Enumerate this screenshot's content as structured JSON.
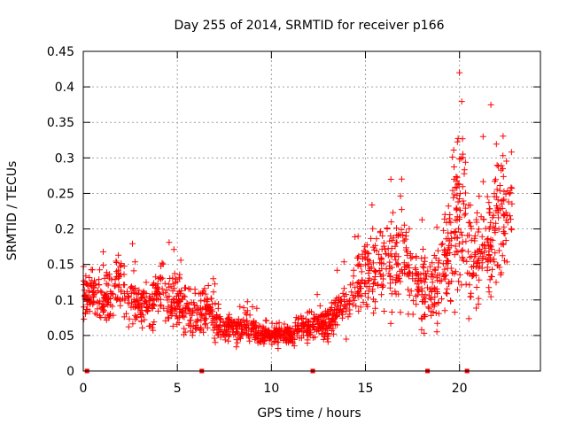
{
  "chart_data": {
    "type": "scatter",
    "title": "Day 255 of 2014, SRMTID for receiver p166",
    "xlabel": "GPS time / hours",
    "ylabel": "SRMTID / TECUs",
    "xlim": [
      0,
      24.3
    ],
    "ylim": [
      0,
      0.45
    ],
    "x_ticks": [
      0,
      5,
      10,
      15,
      20
    ],
    "x_tick_labels": [
      "0",
      "5",
      "10",
      "15",
      "20"
    ],
    "y_ticks": [
      0,
      0.05,
      0.1,
      0.15,
      0.2,
      0.25,
      0.3,
      0.35,
      0.4,
      0.45
    ],
    "y_tick_labels": [
      "0",
      "0.05",
      "0.1",
      "0.15",
      "0.2",
      "0.25",
      "0.3",
      "0.35",
      "0.4",
      "0.45"
    ],
    "grid": true,
    "marker": "+",
    "series_color": "#ff0000",
    "profile": {
      "x": [
        0.0,
        0.5,
        1.0,
        1.5,
        2.0,
        2.5,
        3.0,
        3.5,
        4.0,
        4.3,
        4.6,
        5.0,
        5.5,
        6.0,
        6.5,
        7.0,
        7.5,
        8.0,
        8.5,
        9.0,
        9.5,
        10.0,
        10.5,
        11.0,
        11.5,
        12.0,
        12.5,
        13.0,
        13.5,
        14.0,
        14.5,
        15.0,
        15.5,
        16.0,
        16.5,
        17.0,
        17.5,
        18.0,
        18.5,
        19.0,
        19.5,
        19.9,
        20.3,
        20.6,
        21.0,
        21.5,
        22.0,
        22.5,
        22.8
      ],
      "y": [
        0.11,
        0.11,
        0.1,
        0.11,
        0.12,
        0.1,
        0.09,
        0.09,
        0.11,
        0.13,
        0.1,
        0.1,
        0.09,
        0.08,
        0.09,
        0.07,
        0.06,
        0.06,
        0.06,
        0.06,
        0.05,
        0.05,
        0.05,
        0.05,
        0.06,
        0.06,
        0.065,
        0.07,
        0.085,
        0.1,
        0.12,
        0.15,
        0.13,
        0.15,
        0.16,
        0.16,
        0.14,
        0.12,
        0.11,
        0.13,
        0.17,
        0.23,
        0.22,
        0.17,
        0.15,
        0.17,
        0.22,
        0.22,
        0.24
      ],
      "spread": [
        0.03,
        0.03,
        0.03,
        0.03,
        0.03,
        0.03,
        0.03,
        0.03,
        0.03,
        0.05,
        0.03,
        0.03,
        0.03,
        0.03,
        0.025,
        0.02,
        0.015,
        0.015,
        0.015,
        0.015,
        0.012,
        0.012,
        0.012,
        0.012,
        0.015,
        0.015,
        0.02,
        0.02,
        0.025,
        0.03,
        0.035,
        0.05,
        0.04,
        0.05,
        0.06,
        0.06,
        0.05,
        0.04,
        0.04,
        0.05,
        0.06,
        0.09,
        0.1,
        0.07,
        0.05,
        0.06,
        0.08,
        0.08,
        0.06
      ]
    },
    "n_points": 1700,
    "bottom_markers_x": [
      0.2,
      6.3,
      12.2,
      18.3,
      20.4
    ]
  }
}
